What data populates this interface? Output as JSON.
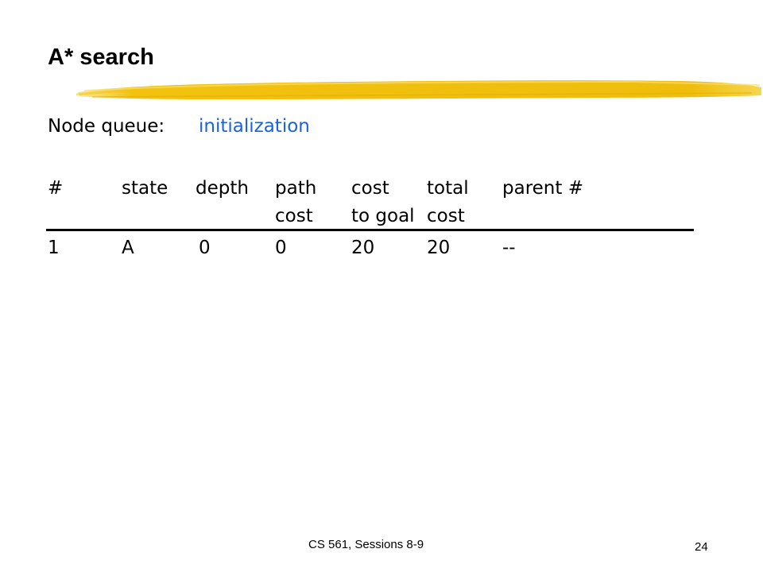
{
  "slide": {
    "title": "A* search",
    "queue_label": "Node queue:",
    "queue_status": "initialization",
    "status_color": "#1a63d6",
    "accent_color": "#f2c20f"
  },
  "table": {
    "headers_row1": [
      "#",
      "state",
      "depth",
      "path",
      "cost",
      "total",
      "parent #"
    ],
    "headers_row2": [
      "",
      "",
      "",
      "cost",
      "to goal",
      "cost",
      ""
    ],
    "rows": [
      [
        "1",
        "A",
        "0",
        "0",
        "20",
        "20",
        "--"
      ]
    ]
  },
  "footer": {
    "text": "CS 561,  Sessions 8-9",
    "page_number": "24"
  }
}
